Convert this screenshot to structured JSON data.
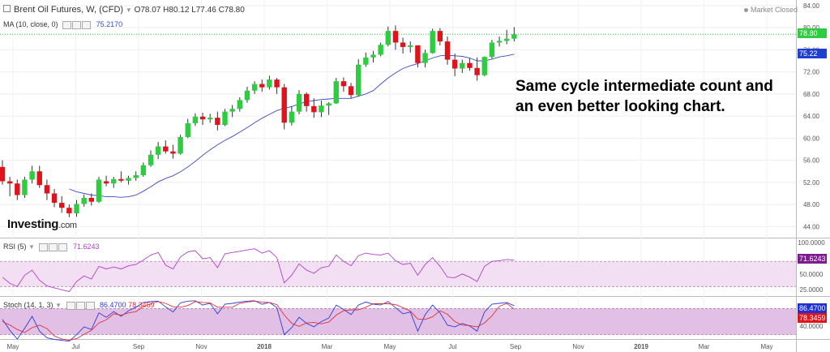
{
  "header": {
    "symbol": "Brent Oil Futures, W, (CFD)",
    "open": "O78.07",
    "high": "H80.12",
    "low": "L77.46",
    "close": "C78.80",
    "ma_label": "MA (10, close, 0)",
    "ma_value": "75.2170",
    "market_status": "Market Closed"
  },
  "rsi_header": {
    "label": "RSI (5)",
    "value": "71.6243"
  },
  "stoch_header": {
    "label": "Stoch (14, 1, 3)",
    "k_value": "86.4700",
    "d_value": "78.3459"
  },
  "annotation": {
    "line1": "Same cycle intermediate count and",
    "line2": "an even better looking chart."
  },
  "logo": {
    "text": "Investing",
    "suffix": ".com"
  },
  "price_tags": {
    "last": "78.80",
    "ma": "75.22",
    "rsi": "71.6243",
    "stoch_k": "86.4700",
    "stoch_d": "78.3459"
  },
  "colors": {
    "up": "#2ecc40",
    "down": "#e0131d",
    "ma_line": "#3b4cc0",
    "rsi_line": "#b040c8",
    "stoch_k": "#2f3bd8",
    "stoch_d": "#e0303a",
    "band": "#e2c0e6"
  },
  "chart_data": [
    {
      "type": "candlestick",
      "title": "Brent Oil Futures, W, (CFD)",
      "x_tick_labels": [
        "May",
        "Jul",
        "Sep",
        "Nov",
        "2018",
        "Mar",
        "May",
        "Jul",
        "Sep",
        "Nov",
        "2019",
        "Mar",
        "May"
      ],
      "y_tick_labels": [
        "84.00",
        "80.00",
        "76.00",
        "72.00",
        "68.00",
        "64.00",
        "60.00",
        "56.00",
        "52.00",
        "48.00",
        "44.00"
      ],
      "ylim": [
        42.0,
        85.0
      ],
      "grid": true,
      "candles": [
        {
          "o": 54.8,
          "h": 56.0,
          "l": 51.6,
          "c": 52.2
        },
        {
          "o": 52.2,
          "h": 53.0,
          "l": 49.5,
          "c": 51.8
        },
        {
          "o": 51.8,
          "h": 52.5,
          "l": 48.8,
          "c": 49.7
        },
        {
          "o": 49.7,
          "h": 53.0,
          "l": 49.2,
          "c": 52.5
        },
        {
          "o": 52.5,
          "h": 55.0,
          "l": 51.8,
          "c": 54.0
        },
        {
          "o": 54.0,
          "h": 55.0,
          "l": 51.0,
          "c": 51.5
        },
        {
          "o": 51.5,
          "h": 52.5,
          "l": 48.8,
          "c": 50.0
        },
        {
          "o": 50.0,
          "h": 50.8,
          "l": 47.5,
          "c": 48.3
        },
        {
          "o": 48.3,
          "h": 49.5,
          "l": 46.5,
          "c": 47.4
        },
        {
          "o": 47.4,
          "h": 48.0,
          "l": 45.7,
          "c": 46.4
        },
        {
          "o": 46.4,
          "h": 48.8,
          "l": 45.8,
          "c": 48.1
        },
        {
          "o": 48.1,
          "h": 49.8,
          "l": 47.6,
          "c": 49.2
        },
        {
          "o": 49.2,
          "h": 50.0,
          "l": 47.8,
          "c": 48.5
        },
        {
          "o": 48.5,
          "h": 53.0,
          "l": 48.3,
          "c": 52.5
        },
        {
          "o": 52.2,
          "h": 53.2,
          "l": 51.3,
          "c": 51.8
        },
        {
          "o": 51.8,
          "h": 53.0,
          "l": 51.0,
          "c": 52.6
        },
        {
          "o": 52.6,
          "h": 54.0,
          "l": 52.0,
          "c": 52.3
        },
        {
          "o": 52.3,
          "h": 53.2,
          "l": 51.6,
          "c": 52.8
        },
        {
          "o": 52.8,
          "h": 54.0,
          "l": 52.3,
          "c": 53.3
        },
        {
          "o": 53.3,
          "h": 55.6,
          "l": 53.0,
          "c": 55.1
        },
        {
          "o": 55.1,
          "h": 57.8,
          "l": 54.8,
          "c": 57.0
        },
        {
          "o": 57.0,
          "h": 59.3,
          "l": 56.2,
          "c": 58.5
        },
        {
          "o": 58.5,
          "h": 59.6,
          "l": 57.2,
          "c": 57.6
        },
        {
          "o": 57.6,
          "h": 58.8,
          "l": 56.3,
          "c": 57.2
        },
        {
          "o": 57.2,
          "h": 60.6,
          "l": 57.0,
          "c": 60.2
        },
        {
          "o": 60.2,
          "h": 63.5,
          "l": 60.0,
          "c": 62.7
        },
        {
          "o": 62.7,
          "h": 64.5,
          "l": 62.2,
          "c": 63.9
        },
        {
          "o": 63.9,
          "h": 64.6,
          "l": 62.4,
          "c": 63.4
        },
        {
          "o": 63.4,
          "h": 64.4,
          "l": 62.8,
          "c": 63.7
        },
        {
          "o": 63.7,
          "h": 64.8,
          "l": 61.4,
          "c": 62.4
        },
        {
          "o": 62.4,
          "h": 65.3,
          "l": 62.2,
          "c": 64.8
        },
        {
          "o": 64.8,
          "h": 66.0,
          "l": 63.8,
          "c": 65.3
        },
        {
          "o": 65.3,
          "h": 67.4,
          "l": 64.8,
          "c": 66.9
        },
        {
          "o": 66.9,
          "h": 69.3,
          "l": 66.4,
          "c": 68.6
        },
        {
          "o": 68.6,
          "h": 70.3,
          "l": 68.0,
          "c": 69.8
        },
        {
          "o": 69.8,
          "h": 70.6,
          "l": 68.4,
          "c": 69.2
        },
        {
          "o": 69.2,
          "h": 71.3,
          "l": 68.8,
          "c": 70.6
        },
        {
          "o": 70.6,
          "h": 70.9,
          "l": 68.0,
          "c": 69.2
        },
        {
          "o": 69.2,
          "h": 69.8,
          "l": 61.6,
          "c": 62.8
        },
        {
          "o": 62.8,
          "h": 65.8,
          "l": 62.3,
          "c": 64.8
        },
        {
          "o": 64.8,
          "h": 68.7,
          "l": 64.3,
          "c": 68.0
        },
        {
          "o": 68.0,
          "h": 68.3,
          "l": 64.8,
          "c": 65.8
        },
        {
          "o": 65.8,
          "h": 67.2,
          "l": 63.7,
          "c": 64.7
        },
        {
          "o": 64.7,
          "h": 66.8,
          "l": 63.8,
          "c": 65.9
        },
        {
          "o": 65.9,
          "h": 66.5,
          "l": 64.2,
          "c": 66.3
        },
        {
          "o": 66.3,
          "h": 70.9,
          "l": 66.2,
          "c": 70.3
        },
        {
          "o": 70.3,
          "h": 71.0,
          "l": 68.4,
          "c": 69.4
        },
        {
          "o": 69.4,
          "h": 70.0,
          "l": 67.2,
          "c": 67.8
        },
        {
          "o": 67.8,
          "h": 74.3,
          "l": 67.5,
          "c": 73.3
        },
        {
          "o": 73.3,
          "h": 75.5,
          "l": 72.9,
          "c": 74.6
        },
        {
          "o": 74.6,
          "h": 75.8,
          "l": 73.7,
          "c": 75.1
        },
        {
          "o": 75.1,
          "h": 77.3,
          "l": 74.8,
          "c": 76.9
        },
        {
          "o": 76.9,
          "h": 80.2,
          "l": 76.6,
          "c": 79.4
        },
        {
          "o": 79.4,
          "h": 80.4,
          "l": 76.0,
          "c": 77.3
        },
        {
          "o": 77.3,
          "h": 78.2,
          "l": 75.3,
          "c": 76.5
        },
        {
          "o": 76.5,
          "h": 77.5,
          "l": 75.5,
          "c": 76.8
        },
        {
          "o": 76.8,
          "h": 76.8,
          "l": 72.8,
          "c": 73.6
        },
        {
          "o": 73.6,
          "h": 76.0,
          "l": 72.8,
          "c": 75.4
        },
        {
          "o": 75.4,
          "h": 79.8,
          "l": 75.3,
          "c": 79.4
        },
        {
          "o": 79.4,
          "h": 79.9,
          "l": 76.8,
          "c": 77.5
        },
        {
          "o": 77.5,
          "h": 78.4,
          "l": 73.3,
          "c": 74.2
        },
        {
          "o": 74.2,
          "h": 75.3,
          "l": 71.2,
          "c": 72.6
        },
        {
          "o": 72.6,
          "h": 74.2,
          "l": 71.8,
          "c": 73.6
        },
        {
          "o": 73.6,
          "h": 74.5,
          "l": 72.2,
          "c": 72.7
        },
        {
          "o": 72.7,
          "h": 74.6,
          "l": 70.4,
          "c": 71.4
        },
        {
          "o": 71.4,
          "h": 74.8,
          "l": 71.2,
          "c": 74.7
        },
        {
          "o": 74.7,
          "h": 77.8,
          "l": 74.4,
          "c": 77.3
        },
        {
          "o": 77.3,
          "h": 78.4,
          "l": 76.6,
          "c": 77.6
        },
        {
          "o": 77.6,
          "h": 79.6,
          "l": 77.0,
          "c": 78.0
        },
        {
          "o": 78.0,
          "h": 80.1,
          "l": 77.5,
          "c": 78.8
        }
      ],
      "ma_10": [
        null,
        null,
        null,
        null,
        null,
        null,
        null,
        null,
        null,
        50.8,
        50.3,
        50.0,
        49.7,
        49.6,
        49.4,
        49.4,
        49.3,
        49.4,
        49.7,
        50.4,
        51.2,
        52.1,
        52.7,
        53.2,
        53.9,
        54.8,
        55.8,
        56.9,
        57.9,
        58.8,
        59.6,
        60.3,
        61.1,
        61.9,
        62.8,
        63.6,
        64.3,
        65.0,
        65.4,
        65.7,
        66.2,
        66.6,
        66.8,
        67.0,
        67.1,
        67.2,
        67.2,
        67.2,
        67.6,
        68.0,
        68.6,
        69.8,
        70.9,
        71.8,
        72.6,
        73.1,
        73.5,
        74.0,
        74.5,
        74.9,
        75.0,
        74.9,
        74.8,
        74.5,
        74.0,
        74.0,
        74.3,
        74.7,
        74.9,
        75.2
      ]
    },
    {
      "type": "line",
      "title": "RSI (5)",
      "y_tick_labels": [
        "100.0000",
        "50.0000",
        "25.0000"
      ],
      "ylim": [
        15,
        105
      ],
      "band": [
        30,
        70
      ],
      "values": [
        45,
        35,
        30,
        48,
        56,
        40,
        31,
        28,
        25,
        22,
        38,
        47,
        42,
        62,
        58,
        61,
        58,
        63,
        65,
        72,
        80,
        84,
        64,
        58,
        77,
        85,
        87,
        74,
        76,
        60,
        82,
        84,
        86,
        88,
        90,
        83,
        87,
        76,
        36,
        48,
        66,
        56,
        51,
        60,
        62,
        80,
        70,
        63,
        79,
        83,
        81,
        80,
        83,
        71,
        65,
        67,
        48,
        65,
        76,
        62,
        45,
        44,
        50,
        45,
        38,
        62,
        70,
        71,
        73,
        72
      ]
    },
    {
      "type": "line",
      "title": "Stoch (14, 1, 3)",
      "y_tick_labels": [
        "40.0000"
      ],
      "ylim": [
        10,
        105
      ],
      "band": [
        20,
        80
      ],
      "series": [
        {
          "name": "%K",
          "values": [
            55,
            30,
            10,
            35,
            62,
            28,
            13,
            9,
            7,
            5,
            20,
            38,
            32,
            70,
            60,
            73,
            62,
            75,
            83,
            94,
            96,
            97,
            84,
            72,
            93,
            97,
            98,
            88,
            92,
            68,
            90,
            92,
            95,
            97,
            98,
            90,
            94,
            82,
            20,
            36,
            60,
            46,
            38,
            50,
            58,
            88,
            78,
            66,
            88,
            95,
            90,
            88,
            96,
            82,
            68,
            72,
            28,
            66,
            88,
            70,
            42,
            38,
            46,
            40,
            28,
            72,
            90,
            92,
            94,
            86.5
          ]
        },
        {
          "name": "%D",
          "values": [
            50,
            42,
            32,
            25,
            36,
            42,
            34,
            17,
            10,
            7,
            11,
            21,
            30,
            47,
            54,
            68,
            65,
            70,
            73,
            84,
            91,
            96,
            92,
            84,
            83,
            87,
            96,
            94,
            93,
            83,
            83,
            83,
            92,
            95,
            97,
            95,
            94,
            89,
            65,
            46,
            39,
            47,
            48,
            45,
            49,
            65,
            75,
            77,
            77,
            83,
            91,
            91,
            91,
            89,
            82,
            74,
            56,
            55,
            61,
            75,
            67,
            50,
            42,
            41,
            38,
            47,
            63,
            85,
            92,
            78.3
          ]
        }
      ]
    }
  ]
}
